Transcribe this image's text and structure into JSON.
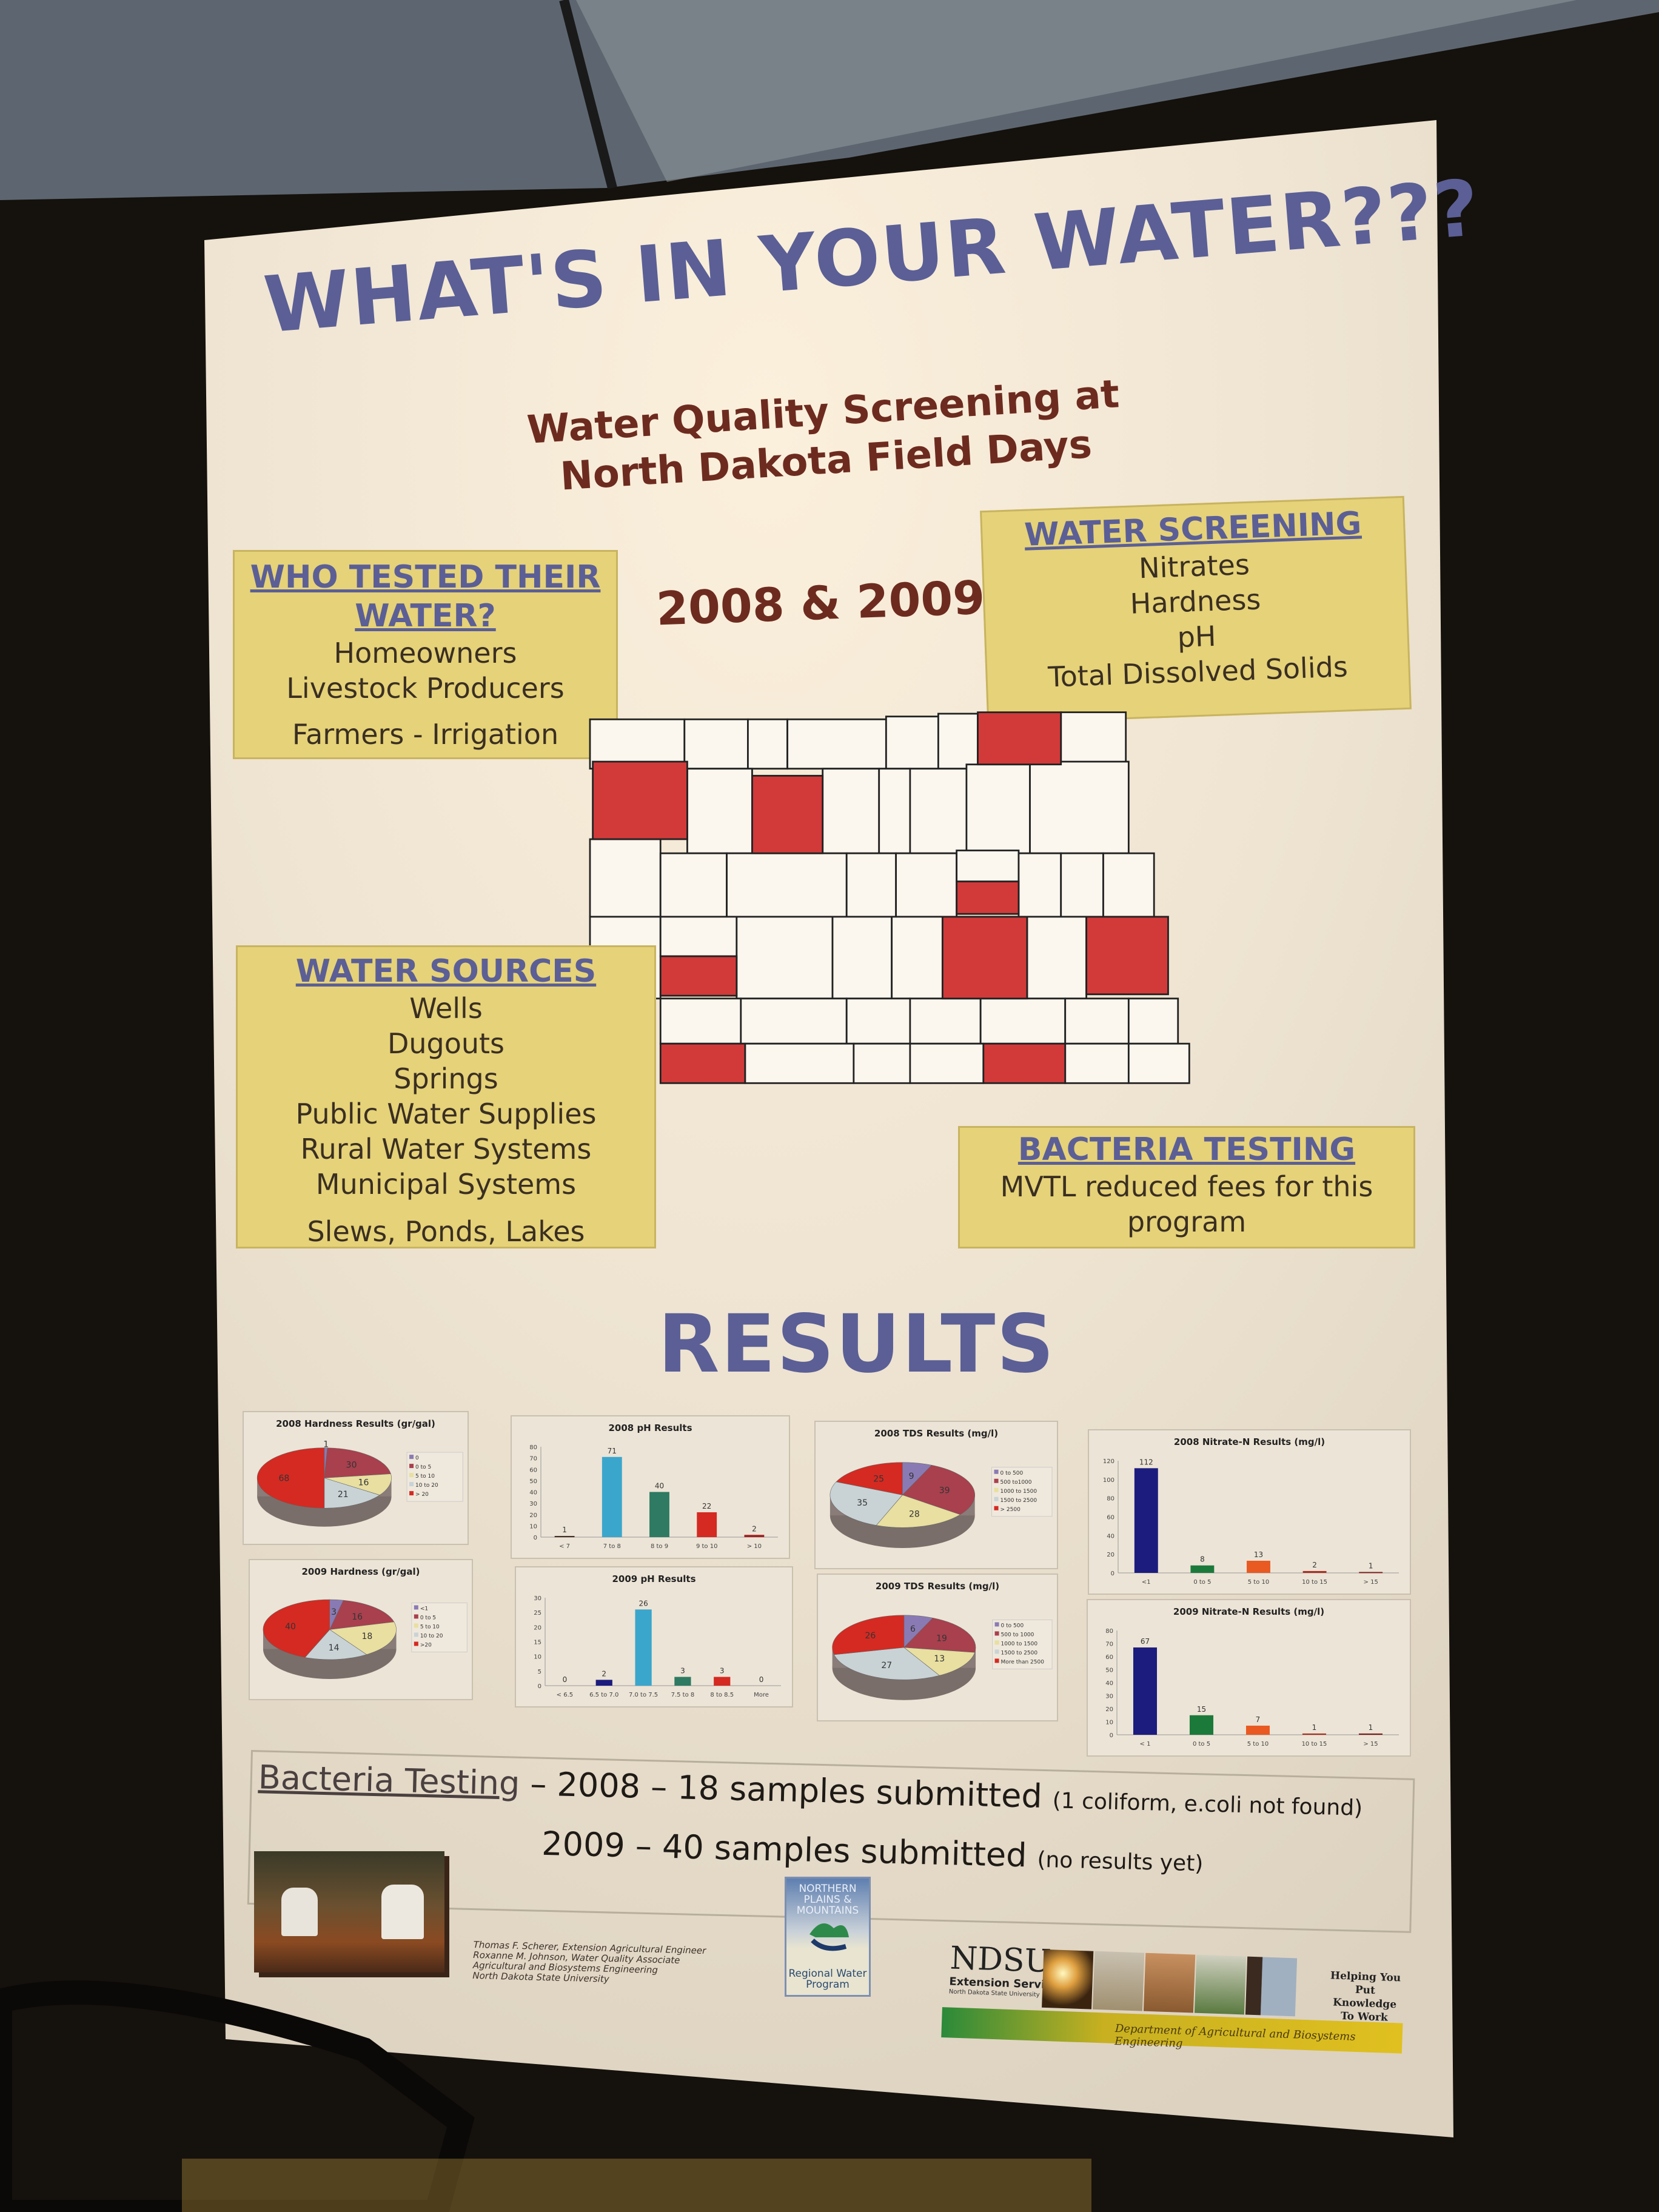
{
  "poster": {
    "title": "WHAT'S IN YOUR WATER???",
    "subtitle_line1": "Water Quality Screening at",
    "subtitle_line2": "North Dakota Field Days",
    "years": "2008 & 2009",
    "who_tested": {
      "heading_line1": "WHO TESTED THEIR",
      "heading_line2": "WATER?",
      "items": [
        "Homeowners",
        "Livestock Producers",
        "Farmers - Irrigation"
      ]
    },
    "water_screening": {
      "heading": "WATER SCREENING",
      "items": [
        "Nitrates",
        "Hardness",
        "pH",
        "Total Dissolved Solids"
      ]
    },
    "water_sources": {
      "heading": "WATER SOURCES",
      "items": [
        "Wells",
        "Dugouts",
        "Springs",
        "Public Water Supplies",
        "Rural Water Systems",
        "Municipal Systems",
        "Slews, Ponds, Lakes"
      ]
    },
    "bacteria_box": {
      "heading": "BACTERIA  TESTING",
      "body_line1": "MVTL reduced fees for this",
      "body_line2": "program"
    },
    "results_heading": "RESULTS",
    "bacteria_summary": {
      "label": "Bacteria Testing",
      "line1": " – 2008 – 18 samples submitted ",
      "line1_note": "(1 coliform, e.coli not found)",
      "line2": "2009 – 40 samples submitted ",
      "line2_note": "(no results yet)"
    },
    "credits": [
      "Thomas F. Scherer, Extension Agricultural Engineer",
      "Roxanne M. Johnson, Water Quality Associate",
      "Agricultural and Biosystems Engineering",
      "North Dakota State University"
    ],
    "npm_logo": {
      "line1": "NORTHERN",
      "line2": "PLAINS &",
      "line3": "MOUNTAINS",
      "line4": "Regional Water",
      "line5": "Program"
    },
    "ndsu_logo": {
      "name": "NDSU",
      "service": "Extension Service",
      "university": "North Dakota State University",
      "tagline1": "Helping You",
      "tagline2": "Put Knowledge",
      "tagline3": "To Work",
      "department": "Department of Agricultural and Biosystems Engineering"
    },
    "colors": {
      "title": "#5b5f96",
      "subtitle": "#6d2b1f",
      "box": "#e6d278",
      "map_highlight": "#d23a3a"
    }
  },
  "chart_data": [
    {
      "type": "pie",
      "title": "2008 Hardness Results (gr/gal)",
      "categories": [
        "0",
        "0 to 5",
        "5 to 10",
        "10 to 20",
        "> 20"
      ],
      "values": [
        1,
        30,
        16,
        21,
        68
      ],
      "colors": [
        "#8a7ab4",
        "#a8404e",
        "#e8dfa0",
        "#c9d3d6",
        "#d42a22"
      ],
      "legend": "right"
    },
    {
      "type": "bar",
      "title": "2008 pH Results",
      "categories": [
        "< 7",
        "7 to 8",
        "8 to 9",
        "9 to 10",
        "> 10"
      ],
      "values": [
        1,
        71,
        40,
        22,
        2
      ],
      "colors": [
        "#3a2418",
        "#3aa6cc",
        "#2e7a62",
        "#d42a22",
        "#a02020"
      ],
      "ylim": [
        0,
        80
      ],
      "ystep": 10
    },
    {
      "type": "pie",
      "title": "2008 TDS Results (mg/l)",
      "categories": [
        "0 to 500",
        "500 to1000",
        "1000 to 1500",
        "1500 to 2500",
        "> 2500"
      ],
      "values": [
        9,
        39,
        28,
        35,
        25
      ],
      "colors": [
        "#8a7ab4",
        "#a8404e",
        "#e8dfa0",
        "#c9d3d6",
        "#d42a22"
      ],
      "legend": "right"
    },
    {
      "type": "bar",
      "title": "2008 Nitrate-N Results (mg/l)",
      "categories": [
        "<1",
        "0 to 5",
        "5 to 10",
        "10 to 15",
        "> 15"
      ],
      "values": [
        112,
        8,
        13,
        2,
        1
      ],
      "colors": [
        "#1c1c7e",
        "#1b7a3a",
        "#e85a22",
        "#a83020",
        "#7a2020"
      ],
      "ylim": [
        0,
        120
      ],
      "ystep": 20
    },
    {
      "type": "pie",
      "title": "2009 Hardness (gr/gal)",
      "categories": [
        "<1",
        "0 to 5",
        "5 to 10",
        "10 to 20",
        ">20"
      ],
      "values": [
        3,
        16,
        18,
        14,
        40
      ],
      "colors": [
        "#8a7ab4",
        "#a8404e",
        "#e8dfa0",
        "#c9d3d6",
        "#d42a22"
      ],
      "legend": "right"
    },
    {
      "type": "bar",
      "title": "2009 pH Results",
      "categories": [
        "< 6.5",
        "6.5 to 7.0",
        "7.0 to 7.5",
        "7.5 to 8",
        "8 to 8.5",
        "More"
      ],
      "values": [
        0,
        2,
        26,
        3,
        3,
        0
      ],
      "colors": [
        "#1c1c7e",
        "#1c1c7e",
        "#3aa6cc",
        "#2e7a62",
        "#d42a22",
        "#a02020"
      ],
      "ylim": [
        0,
        30
      ],
      "ystep": 5
    },
    {
      "type": "pie",
      "title": "2009 TDS Results (mg/l)",
      "categories": [
        "0 to 500",
        "500 to 1000",
        "1000 to 1500",
        "1500 to 2500",
        "More than 2500"
      ],
      "values": [
        6,
        19,
        13,
        27,
        26
      ],
      "colors": [
        "#8a7ab4",
        "#a8404e",
        "#e8dfa0",
        "#c9d3d6",
        "#d42a22"
      ],
      "legend": "right"
    },
    {
      "type": "bar",
      "title": "2009 Nitrate-N Results (mg/l)",
      "categories": [
        "< 1",
        "0 to 5",
        "5 to 10",
        "10 to 15",
        "> 15"
      ],
      "values": [
        67,
        15,
        7,
        1,
        1
      ],
      "colors": [
        "#1c1c7e",
        "#1b7a3a",
        "#e85a22",
        "#a83020",
        "#7a2020"
      ],
      "ylim": [
        0,
        80
      ],
      "ystep": 10
    }
  ]
}
